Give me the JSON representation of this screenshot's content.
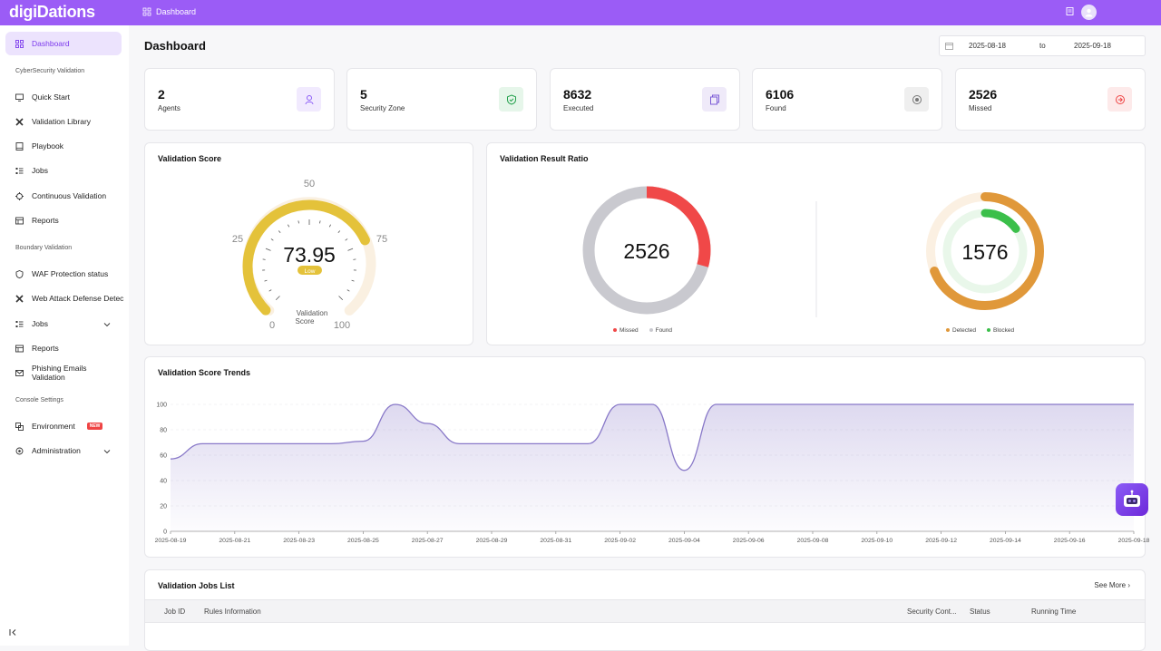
{
  "app": {
    "logo": "digiDations"
  },
  "breadcrumb": {
    "label": "Dashboard"
  },
  "sidebar": {
    "items": [
      {
        "label": "Dashboard",
        "icon": "grid-icon",
        "active": true
      },
      {
        "section": "CyberSecurity Validation"
      },
      {
        "label": "Quick Start",
        "icon": "monitor-icon"
      },
      {
        "label": "Validation Library",
        "icon": "tools-icon"
      },
      {
        "label": "Playbook",
        "icon": "book-icon"
      },
      {
        "label": "Jobs",
        "icon": "list-icon"
      },
      {
        "label": "Continuous Validation",
        "icon": "crosshair-icon"
      },
      {
        "label": "Reports",
        "icon": "report-icon"
      },
      {
        "section": "Boundary Validation"
      },
      {
        "label": "WAF Protection status",
        "icon": "shield-icon"
      },
      {
        "label": "Web Attack Defense Detec",
        "icon": "tools-icon"
      },
      {
        "label": "Jobs",
        "icon": "list-icon",
        "chevron": true
      },
      {
        "label": "Reports",
        "icon": "report-icon"
      },
      {
        "label": "Phishing Emails Validation",
        "icon": "mail-icon"
      },
      {
        "section": "Console Settings"
      },
      {
        "label": "Environment",
        "icon": "environment-icon",
        "badge": "NEW"
      },
      {
        "label": "Administration",
        "icon": "gear-icon",
        "chevron": true
      }
    ]
  },
  "header": {
    "title": "Dashboard",
    "date_from": "2025-08-18",
    "date_to_label": "to",
    "date_to": "2025-09-18"
  },
  "stats": [
    {
      "value": "2",
      "label": "Agents",
      "icon": "agent-icon",
      "color": "#8b5cf6",
      "bg": "#f1eafe"
    },
    {
      "value": "5",
      "label": "Security Zone",
      "icon": "shield-check-icon",
      "color": "#22a04b",
      "bg": "#e6f6ea"
    },
    {
      "value": "8632",
      "label": "Executed",
      "icon": "copy-icon",
      "color": "#7c5cd6",
      "bg": "#efeaf9"
    },
    {
      "value": "6106",
      "label": "Found",
      "icon": "target-icon",
      "color": "#777",
      "bg": "#efefef"
    },
    {
      "value": "2526",
      "label": "Missed",
      "icon": "alert-circle-icon",
      "color": "#ef4444",
      "bg": "#fdeaea"
    }
  ],
  "score_card": {
    "title": "Validation Score",
    "value": "73.95",
    "score_number": 73.95,
    "level": "Low",
    "caption_line1": "Validation",
    "caption_line2": "Score",
    "ticks": [
      "0",
      "25",
      "50",
      "75",
      "100"
    ],
    "color": "#e4c23a"
  },
  "ratio_card": {
    "title": "Validation Result Ratio",
    "donut1": {
      "center": "2526",
      "missed": 2526,
      "found": 6106,
      "legend": [
        "Missed",
        "Found"
      ],
      "colors": [
        "#f04848",
        "#c9c9cf"
      ]
    },
    "donut2": {
      "center": "1576",
      "detected_fraction": 0.69,
      "blocked_fraction": 0.15,
      "legend": [
        "Detected",
        "Blocked"
      ],
      "colors": [
        "#e0983a",
        "#3bbf4a"
      ]
    }
  },
  "trend_card": {
    "title": "Validation Score Trends",
    "chart_data": {
      "type": "area",
      "x": [
        "2025-08-19",
        "2025-08-20",
        "2025-08-21",
        "2025-08-22",
        "2025-08-23",
        "2025-08-24",
        "2025-08-25",
        "2025-08-26",
        "2025-08-27",
        "2025-08-28",
        "2025-08-29",
        "2025-08-30",
        "2025-08-31",
        "2025-09-01",
        "2025-09-02",
        "2025-09-03",
        "2025-09-04",
        "2025-09-05",
        "2025-09-06",
        "2025-09-07",
        "2025-09-08",
        "2025-09-09",
        "2025-09-10",
        "2025-09-11",
        "2025-09-12",
        "2025-09-13",
        "2025-09-14",
        "2025-09-15",
        "2025-09-16",
        "2025-09-17",
        "2025-09-18"
      ],
      "values": [
        57,
        69,
        69,
        69,
        69,
        69,
        71,
        100,
        85,
        69,
        69,
        69,
        69,
        69,
        100,
        100,
        48,
        100,
        100,
        100,
        100,
        100,
        100,
        100,
        100,
        100,
        100,
        100,
        100,
        100,
        100
      ],
      "x_tick_labels": [
        "2025-08-19",
        "2025-08-21",
        "2025-08-23",
        "2025-08-25",
        "2025-08-27",
        "2025-08-29",
        "2025-08-31",
        "2025-09-02",
        "2025-09-04",
        "2025-09-06",
        "2025-09-08",
        "2025-09-10",
        "2025-09-12",
        "2025-09-14",
        "2025-09-16",
        "2025-09-18"
      ],
      "y_ticks": [
        "0",
        "20",
        "40",
        "60",
        "80",
        "100"
      ],
      "ylim": [
        0,
        100
      ],
      "color": "#8878c8"
    }
  },
  "jobs_card": {
    "title": "Validation Jobs List",
    "see_more": "See More",
    "columns": [
      "Job ID",
      "Rules Information",
      "Security Cont...",
      "Status",
      "Running Time"
    ]
  }
}
